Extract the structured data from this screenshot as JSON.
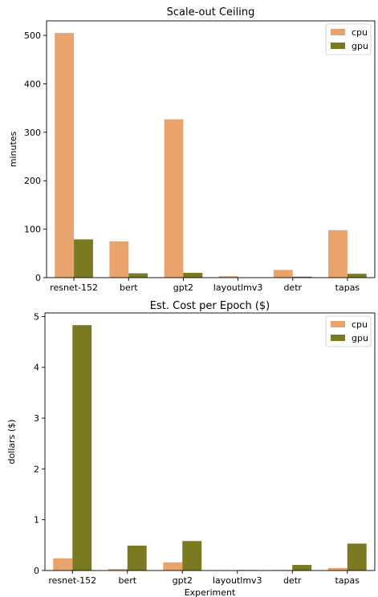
{
  "colors": {
    "cpu": "#e8a46c",
    "gpu": "#7b7a23"
  },
  "chart_data": [
    {
      "type": "bar",
      "title": "Scale-out Ceiling",
      "xlabel": "",
      "ylabel": "minutes",
      "categories": [
        "resnet-152",
        "bert",
        "gpt2",
        "layoutlmv3",
        "detr",
        "tapas"
      ],
      "series": [
        {
          "name": "cpu",
          "values": [
            505,
            75,
            327,
            3,
            16,
            98
          ]
        },
        {
          "name": "gpu",
          "values": [
            79,
            9,
            10,
            0,
            2,
            8
          ]
        }
      ],
      "ylim": [
        0,
        530
      ],
      "yticks": [
        "0",
        "100",
        "200",
        "300",
        "400",
        "500"
      ],
      "legend": "top-right",
      "grid": false
    },
    {
      "type": "bar",
      "title": "Est. Cost per Epoch ($)",
      "xlabel": "Experiment",
      "ylabel": "dollars ($)",
      "categories": [
        "resnet-152",
        "bert",
        "gpt2",
        "layoutlmv3",
        "detr",
        "tapas"
      ],
      "series": [
        {
          "name": "cpu",
          "values": [
            0.24,
            0.03,
            0.16,
            0.0,
            0.01,
            0.05
          ]
        },
        {
          "name": "gpu",
          "values": [
            4.83,
            0.49,
            0.58,
            0.01,
            0.11,
            0.53
          ]
        }
      ],
      "ylim": [
        0,
        5.07
      ],
      "yticks": [
        "0",
        "1",
        "2",
        "3",
        "4",
        "5"
      ],
      "legend": "top-right",
      "grid": false
    }
  ]
}
